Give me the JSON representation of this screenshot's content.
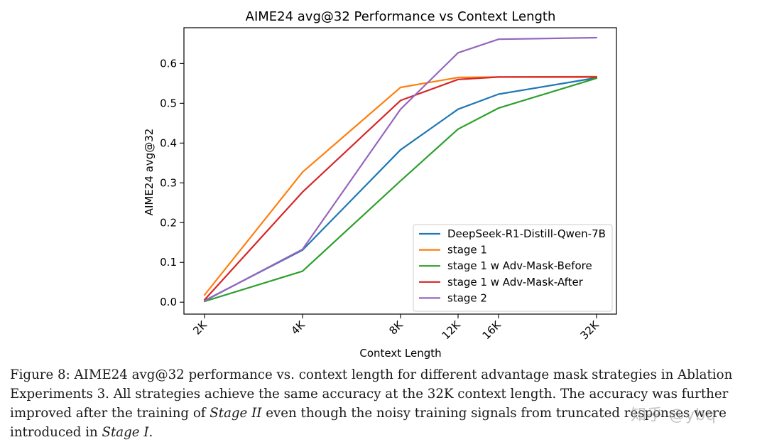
{
  "chart_data": {
    "type": "line",
    "title": "AIME24 avg@32 Performance vs Context Length",
    "xlabel": "Context Length",
    "ylabel": "AIME24 avg@32",
    "categories": [
      "2K",
      "4K",
      "8K",
      "12K",
      "16K",
      "32K"
    ],
    "x": [
      2,
      4,
      8,
      12,
      16,
      32
    ],
    "x_scale": "log2",
    "ylim": [
      -0.03,
      0.69
    ],
    "yticks": [
      0.0,
      0.1,
      0.2,
      0.3,
      0.4,
      0.5,
      0.6
    ],
    "ytick_labels": [
      "0.0",
      "0.1",
      "0.2",
      "0.3",
      "0.4",
      "0.5",
      "0.6"
    ],
    "grid": false,
    "legend_position": "lower-right",
    "series": [
      {
        "name": "DeepSeek-R1-Distill-Qwen-7B",
        "color": "#1f77b4",
        "values": [
          0.004,
          0.131,
          0.383,
          0.485,
          0.523,
          0.564
        ]
      },
      {
        "name": "stage 1",
        "color": "#ff7f0e",
        "values": [
          0.018,
          0.327,
          0.54,
          0.565,
          0.566,
          0.567
        ]
      },
      {
        "name": "stage 1 w Adv-Mask-Before",
        "color": "#2ca02c",
        "values": [
          0.002,
          0.078,
          0.305,
          0.435,
          0.488,
          0.563
        ]
      },
      {
        "name": "stage 1 w Adv-Mask-After",
        "color": "#d62728",
        "values": [
          0.006,
          0.277,
          0.507,
          0.56,
          0.566,
          0.566
        ]
      },
      {
        "name": "stage 2",
        "color": "#9467bd",
        "values": [
          0.003,
          0.133,
          0.485,
          0.627,
          0.661,
          0.665
        ]
      }
    ]
  },
  "caption": {
    "line1": "Figure 8: AIME24 avg@32 performance vs. context length for different advantage mask strategies in Ablation",
    "line2": "Experiments 3. All strategies achieve the same accuracy at the 32K context length. The accuracy was further",
    "line3_pre": "improved after the training of ",
    "line3_em": "Stage II",
    "line3_post": " even though the noisy training signals from truncated responses were",
    "line4_pre": "introduced in ",
    "line4_em": "Stage I",
    "line4_post": "."
  },
  "watermark": "知乎 @ybq"
}
